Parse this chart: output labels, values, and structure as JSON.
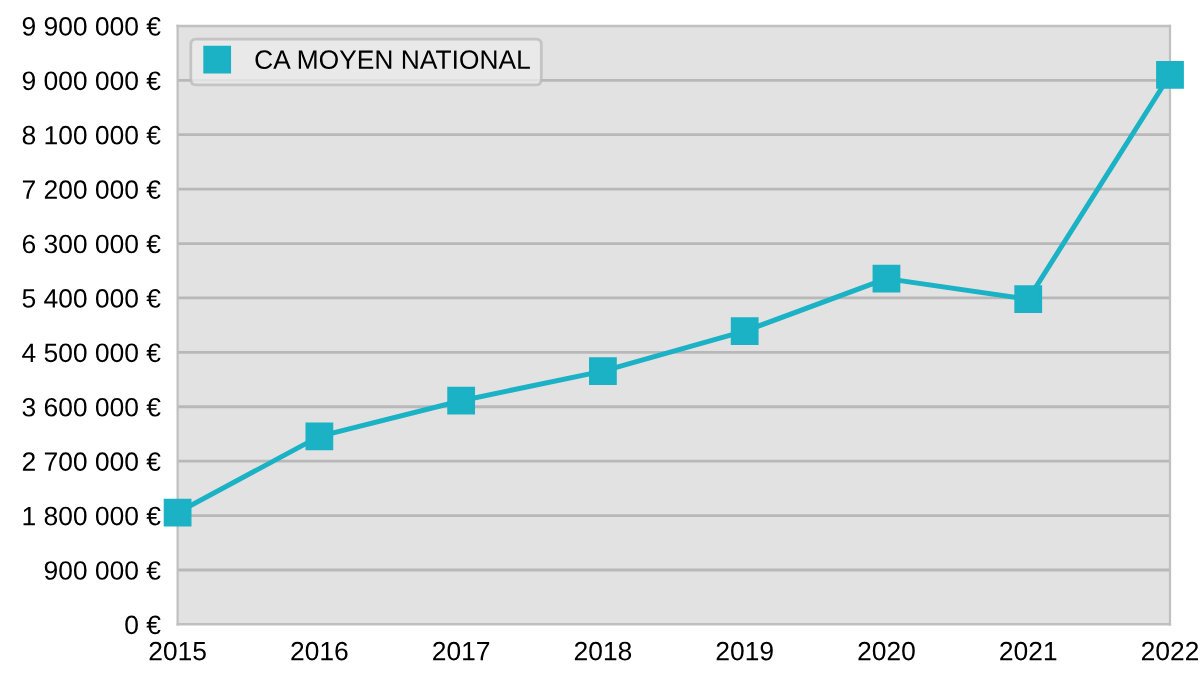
{
  "chart_data": {
    "type": "line",
    "categories": [
      "2015",
      "2016",
      "2017",
      "2018",
      "2019",
      "2020",
      "2021",
      "2022"
    ],
    "series": [
      {
        "name": "CA MOYEN NATIONAL",
        "color": "#1ab2c4",
        "values": [
          1850000,
          3110000,
          3700000,
          4190000,
          4850000,
          5720000,
          5380000,
          9090000
        ]
      }
    ],
    "ylim": [
      0,
      9900000
    ],
    "yticks": [
      {
        "value": 0,
        "label": "0 €"
      },
      {
        "value": 900000,
        "label": "900 000 €"
      },
      {
        "value": 1800000,
        "label": "1 800 000 €"
      },
      {
        "value": 2700000,
        "label": "2 700 000 €"
      },
      {
        "value": 3600000,
        "label": "3 600 000 €"
      },
      {
        "value": 4500000,
        "label": "4 500 000 €"
      },
      {
        "value": 5400000,
        "label": "5 400 000 €"
      },
      {
        "value": 6300000,
        "label": "6 300 000 €"
      },
      {
        "value": 7200000,
        "label": "7 200 000 €"
      },
      {
        "value": 8100000,
        "label": "8 100 000 €"
      },
      {
        "value": 9000000,
        "label": "9 000 000 €"
      },
      {
        "value": 9900000,
        "label": "9 900 000 €"
      }
    ],
    "grid": "y",
    "legend": "top left",
    "marker": "square",
    "line_style": "solid"
  }
}
